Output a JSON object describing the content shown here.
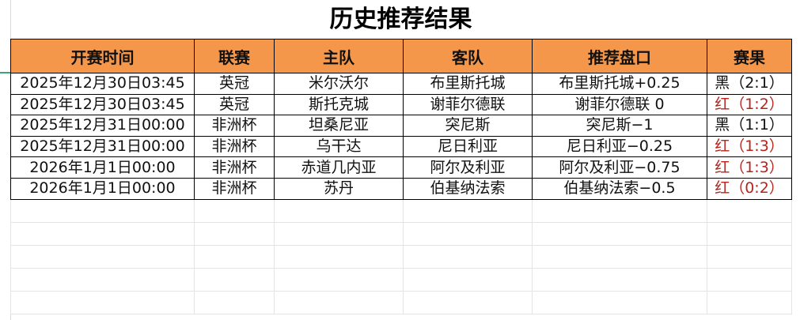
{
  "title": "历史推荐结果",
  "headers": [
    "开赛时间",
    "联赛",
    "主队",
    "客队",
    "推荐盘口",
    "赛果"
  ],
  "rows": [
    [
      "2025年12月30日03:45",
      "英冠",
      "米尔沃尔",
      "布里斯托城",
      "布里斯托城+0.25",
      "黑（2:1）"
    ],
    [
      "2025年12月30日03:45",
      "英冠",
      "斯托克城",
      "谢菲尔德联",
      "谢菲尔德联 0",
      "红（1:2）"
    ],
    [
      "2025年12月31日00:00",
      "非洲杯",
      "坦桑尼亚",
      "突尼斯",
      "突尼斯−1",
      "黑（1:1）"
    ],
    [
      "2025年12月31日00:00",
      "非洲杯",
      "乌干达",
      "尼日利亚",
      "尼日利亚−0.25",
      "红（1:3）"
    ],
    [
      "2026年1月1日00:00",
      "非洲杯",
      "赤道几内亚",
      "阿尔及利亚",
      "阿尔及利亚−0.75",
      "红（1:3）"
    ],
    [
      "2026年1月1日00:00",
      "非洲杯",
      "苏丹",
      "伯基纳法索",
      "伯基纳法索−0.5",
      "红（0:2）"
    ]
  ],
  "colors": {
    "header_bg": "#f4974a",
    "red_result": "#b5251d",
    "black_result": "#111111"
  }
}
